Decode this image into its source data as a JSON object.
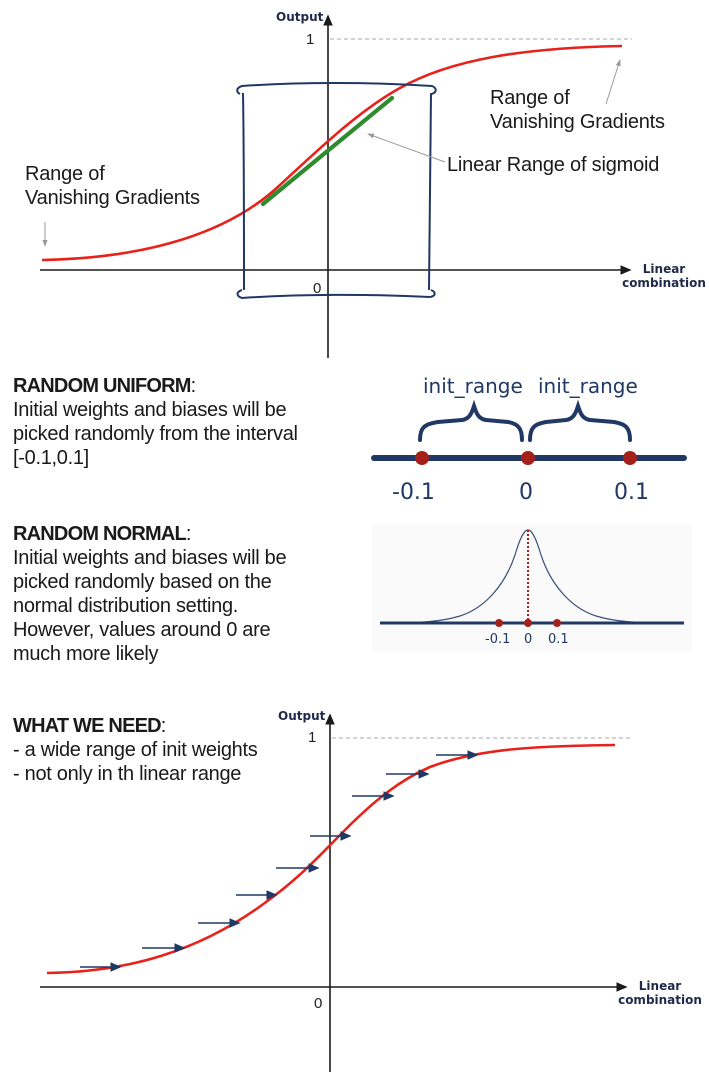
{
  "top_chart": {
    "y_axis_label": "Output",
    "x_axis_label_line1": "Linear",
    "x_axis_label_line2": "combination",
    "y_tick_1": "1",
    "origin_label": "0",
    "left_annotation_line1": "Range of",
    "left_annotation_line2": "Vanishing Gradients",
    "right_annotation_line1": "Range of",
    "right_annotation_line2": "Vanishing Gradients",
    "linear_annotation": "Linear Range of sigmoid",
    "colors": {
      "curve": "#e8211a",
      "linear_segment": "#2e8b2e",
      "bracket_box": "#1f3864"
    }
  },
  "random_uniform": {
    "heading": "RANDOM UNIFORM",
    "heading_suffix": ":",
    "body": "Initial weights and biases will be\npicked randomly from the interval\n[-0.1,0.1]",
    "diagram": {
      "range_label_left": "init_range",
      "range_label_right": "init_range",
      "tick_left": "-0.1",
      "tick_center": "0",
      "tick_right": "0.1",
      "colors": {
        "line": "#1f3864",
        "dot": "#a5201a"
      }
    }
  },
  "random_normal": {
    "heading": "RANDOM NORMAL",
    "heading_suffix": ":",
    "body": "Initial weights and biases will be\npicked randomly based on the\nnormal distribution setting.\nHowever, values around 0 are\nmuch more likely",
    "diagram": {
      "tick_left": "-0.1",
      "tick_center": "0",
      "tick_right": "0.1",
      "colors": {
        "line": "#1f3864",
        "dot": "#a5201a",
        "curve": "#3b4f7a"
      }
    }
  },
  "what_we_need": {
    "heading": "WHAT WE NEED",
    "heading_suffix": ":",
    "body": "- a wide range of init weights\n- not only in th linear range"
  },
  "bottom_chart": {
    "y_axis_label": "Output",
    "x_axis_label_line1": "Linear",
    "x_axis_label_line2": "combination",
    "y_tick_1": "1",
    "origin_label": "0",
    "colors": {
      "curve": "#e8211a",
      "arrow": "#1f3864"
    }
  }
}
